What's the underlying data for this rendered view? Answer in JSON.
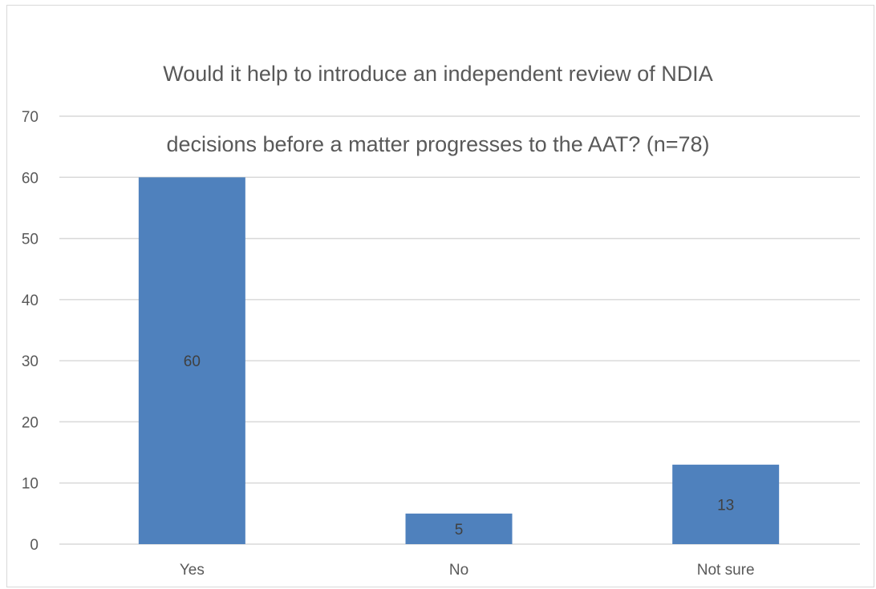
{
  "chart_data": {
    "type": "bar",
    "title": "Would it help to introduce an independent review of NDIA decisions before a matter progresses to the AAT? (n=78)",
    "title_lines": [
      "Would it help to introduce an independent review of NDIA",
      "decisions before a matter progresses to the AAT? (n=78)"
    ],
    "categories": [
      "Yes",
      "No",
      "Not sure"
    ],
    "values": [
      60,
      5,
      13
    ],
    "data_labels": [
      "60",
      "5",
      "13"
    ],
    "ylim": [
      0,
      70
    ],
    "yticks": [
      0,
      10,
      20,
      30,
      40,
      50,
      60,
      70
    ],
    "xlabel": "",
    "ylabel": "",
    "grid": true,
    "legend": "none",
    "bar_color": "#4f81bd",
    "grid_color": "#d9d9d9",
    "text_color": "#595959"
  }
}
